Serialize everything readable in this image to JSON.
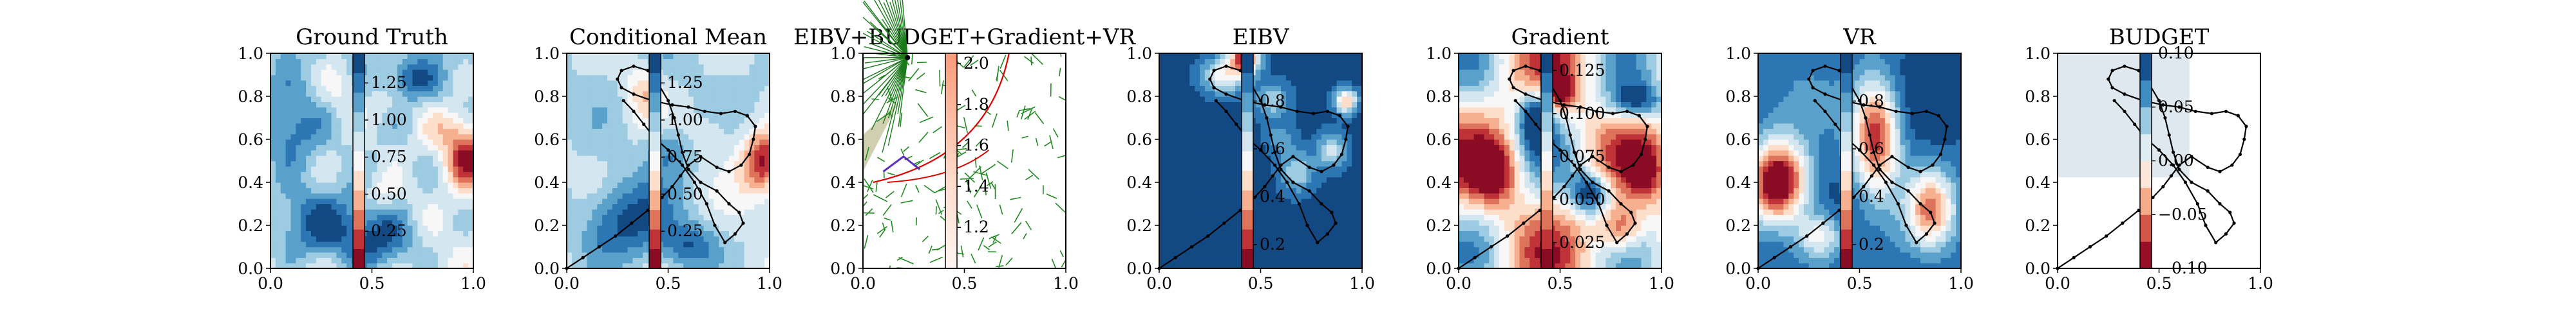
{
  "figure": {
    "background": "#ffffff"
  },
  "chart_data": [
    {
      "type": "heatmap",
      "title": "Ground Truth",
      "xlim": [
        0,
        1
      ],
      "ylim": [
        0,
        1
      ],
      "xticks": [
        "0.0",
        "0.5",
        "1.0"
      ],
      "yticks": [
        "0.0",
        "0.2",
        "0.4",
        "0.6",
        "0.8",
        "1.0"
      ],
      "colorbar": {
        "range": [
          0.0,
          1.45
        ],
        "ticks": [
          "0.25",
          "0.50",
          "0.75",
          "1.00",
          "1.25"
        ],
        "colormap": "RdBu"
      },
      "field": "ground_truth",
      "paths": []
    },
    {
      "type": "heatmap",
      "title": "Conditional Mean",
      "xlim": [
        0,
        1
      ],
      "ylim": [
        0,
        1
      ],
      "xticks": [
        "0.0",
        "0.5",
        "1.0"
      ],
      "yticks": [
        "0.0",
        "0.2",
        "0.4",
        "0.6",
        "0.8",
        "1.0"
      ],
      "colorbar": {
        "range": [
          0.0,
          1.45
        ],
        "ticks": [
          "0.25",
          "0.50",
          "0.75",
          "1.00",
          "1.25"
        ],
        "colormap": "RdBu"
      },
      "field": "conditional_mean",
      "paths": [
        "trajectory"
      ]
    },
    {
      "type": "tree",
      "title": "EIBV+BUDGET+Gradient+VR",
      "xlim": [
        0,
        1
      ],
      "ylim": [
        0,
        1
      ],
      "xticks": [
        "0.0",
        "0.5",
        "1.0"
      ],
      "yticks": [
        "0.0",
        "0.2",
        "0.4",
        "0.6",
        "0.8",
        "1.0"
      ],
      "colorbar": {
        "range": [
          1.0,
          2.05
        ],
        "ticks": [
          "1.2",
          "1.4",
          "1.6",
          "1.8",
          "2.0"
        ],
        "colormap": "Reds"
      },
      "field": "tree"
    },
    {
      "type": "heatmap",
      "title": "EIBV",
      "xlim": [
        0,
        1
      ],
      "ylim": [
        0,
        1
      ],
      "xticks": [
        "0.0",
        "0.5",
        "1.0"
      ],
      "yticks": [
        "0.0",
        "0.2",
        "0.4",
        "0.6",
        "0.8",
        "1.0"
      ],
      "colorbar": {
        "range": [
          0.1,
          1.0
        ],
        "ticks": [
          "0.2",
          "0.4",
          "0.6",
          "0.8"
        ],
        "colormap": "RdBu"
      },
      "field": "eibv",
      "paths": [
        "trajectory"
      ]
    },
    {
      "type": "heatmap",
      "title": "Gradient",
      "xlim": [
        0,
        1
      ],
      "ylim": [
        0,
        1
      ],
      "xticks": [
        "0.0",
        "0.5",
        "1.0"
      ],
      "yticks": [
        "0.0",
        "0.2",
        "0.4",
        "0.6",
        "0.8",
        "1.0"
      ],
      "colorbar": {
        "range": [
          0.01,
          0.135
        ],
        "ticks": [
          "0.025",
          "0.050",
          "0.075",
          "0.100",
          "0.125"
        ],
        "colormap": "RdBu"
      },
      "field": "gradient",
      "paths": [
        "trajectory"
      ]
    },
    {
      "type": "heatmap",
      "title": "VR",
      "xlim": [
        0,
        1
      ],
      "ylim": [
        0,
        1
      ],
      "xticks": [
        "0.0",
        "0.5",
        "1.0"
      ],
      "yticks": [
        "0.0",
        "0.2",
        "0.4",
        "0.6",
        "0.8",
        "1.0"
      ],
      "colorbar": {
        "range": [
          0.1,
          1.0
        ],
        "ticks": [
          "0.2",
          "0.4",
          "0.6",
          "0.8"
        ],
        "colormap": "RdBu"
      },
      "field": "vr",
      "paths": [
        "trajectory"
      ]
    },
    {
      "type": "heatmap",
      "title": "BUDGET",
      "xlim": [
        0,
        1
      ],
      "ylim": [
        0,
        1
      ],
      "xticks": [
        "0.0",
        "0.5",
        "1.0"
      ],
      "yticks": [
        "0.0",
        "0.2",
        "0.4",
        "0.6",
        "0.8",
        "1.0"
      ],
      "colorbar": {
        "range": [
          -0.1,
          0.1
        ],
        "ticks": [
          "0.10",
          "0.05",
          "0.00",
          "−0.05",
          "−0.10"
        ],
        "colormap": "RdBu"
      },
      "field": "budget",
      "paths": [
        "trajectory"
      ]
    }
  ],
  "trajectory": [
    [
      0.0,
      0.0
    ],
    [
      0.08,
      0.05
    ],
    [
      0.16,
      0.1
    ],
    [
      0.24,
      0.15
    ],
    [
      0.32,
      0.21
    ],
    [
      0.4,
      0.27
    ],
    [
      0.47,
      0.33
    ],
    [
      0.52,
      0.38
    ],
    [
      0.56,
      0.43
    ],
    [
      0.6,
      0.48
    ],
    [
      0.66,
      0.52
    ],
    [
      0.74,
      0.47
    ],
    [
      0.8,
      0.45
    ],
    [
      0.86,
      0.48
    ],
    [
      0.9,
      0.53
    ],
    [
      0.92,
      0.6
    ],
    [
      0.93,
      0.66
    ],
    [
      0.89,
      0.71
    ],
    [
      0.83,
      0.73
    ],
    [
      0.76,
      0.72
    ],
    [
      0.68,
      0.73
    ],
    [
      0.6,
      0.75
    ],
    [
      0.52,
      0.76
    ],
    [
      0.42,
      0.78
    ],
    [
      0.33,
      0.81
    ],
    [
      0.27,
      0.84
    ],
    [
      0.25,
      0.88
    ],
    [
      0.27,
      0.92
    ],
    [
      0.33,
      0.94
    ],
    [
      0.4,
      0.92
    ],
    [
      0.45,
      0.86
    ],
    [
      0.5,
      0.78
    ],
    [
      0.53,
      0.7
    ],
    [
      0.55,
      0.62
    ],
    [
      0.57,
      0.54
    ],
    [
      0.6,
      0.46
    ],
    [
      0.66,
      0.4
    ],
    [
      0.74,
      0.36
    ],
    [
      0.8,
      0.3
    ],
    [
      0.85,
      0.26
    ],
    [
      0.87,
      0.21
    ],
    [
      0.83,
      0.16
    ],
    [
      0.78,
      0.12
    ],
    [
      0.73,
      0.2
    ],
    [
      0.69,
      0.3
    ],
    [
      0.63,
      0.4
    ],
    [
      0.57,
      0.48
    ],
    [
      0.5,
      0.55
    ],
    [
      0.43,
      0.61
    ],
    [
      0.38,
      0.67
    ],
    [
      0.33,
      0.73
    ],
    [
      0.28,
      0.78
    ]
  ]
}
